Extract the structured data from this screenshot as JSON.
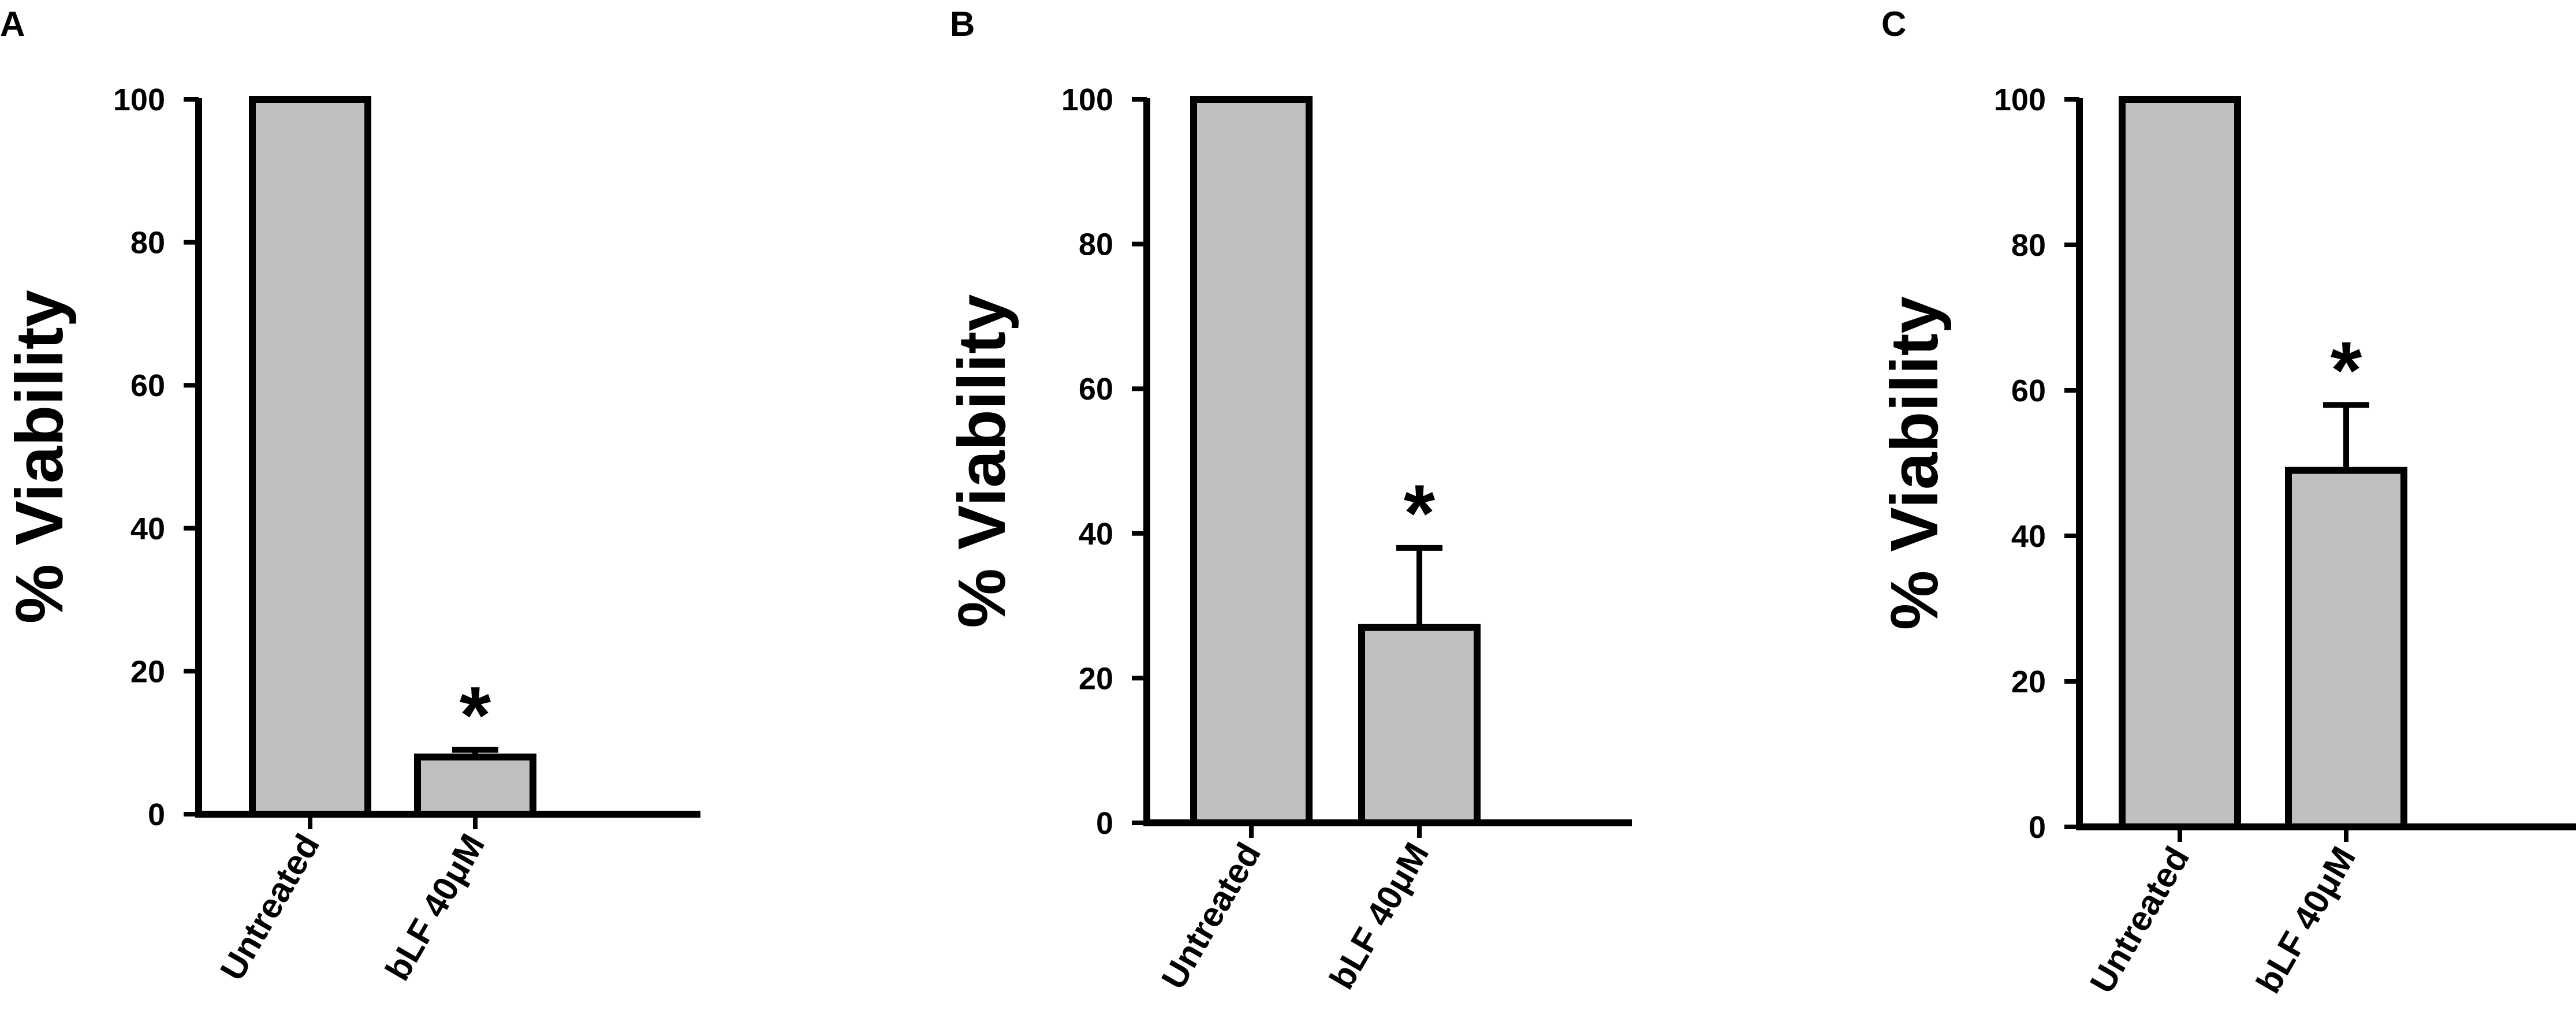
{
  "colors": {
    "bar_fill": "#c0c0c0",
    "stroke": "#000000",
    "background": "#ffffff"
  },
  "chart_data": [
    {
      "type": "bar",
      "panel_label": "A",
      "ylabel": "% Viability",
      "xlabel": "",
      "ylim": [
        0,
        100
      ],
      "yticks": [
        "0",
        "20",
        "40",
        "60",
        "80",
        "100"
      ],
      "categories": [
        "Untreated",
        "bLF 40μM"
      ],
      "values": [
        100,
        8
      ],
      "error": [
        0,
        1
      ],
      "annotations": [
        {
          "category": "bLF 40μM",
          "text": "*"
        }
      ]
    },
    {
      "type": "bar",
      "panel_label": "B",
      "ylabel": "% Viability",
      "xlabel": "",
      "ylim": [
        0,
        100
      ],
      "yticks": [
        "0",
        "20",
        "40",
        "60",
        "80",
        "100"
      ],
      "categories": [
        "Untreated",
        "bLF 40μM"
      ],
      "values": [
        100,
        27
      ],
      "error": [
        0,
        11
      ],
      "annotations": [
        {
          "category": "bLF 40μM",
          "text": "*"
        }
      ]
    },
    {
      "type": "bar",
      "panel_label": "C",
      "ylabel": "% Viability",
      "xlabel": "",
      "ylim": [
        0,
        100
      ],
      "yticks": [
        "0",
        "20",
        "40",
        "60",
        "80",
        "100"
      ],
      "categories": [
        "Untreated",
        "bLF 40μM"
      ],
      "values": [
        100,
        49
      ],
      "error": [
        0,
        9
      ],
      "annotations": [
        {
          "category": "bLF 40μM",
          "text": "*"
        }
      ]
    }
  ]
}
